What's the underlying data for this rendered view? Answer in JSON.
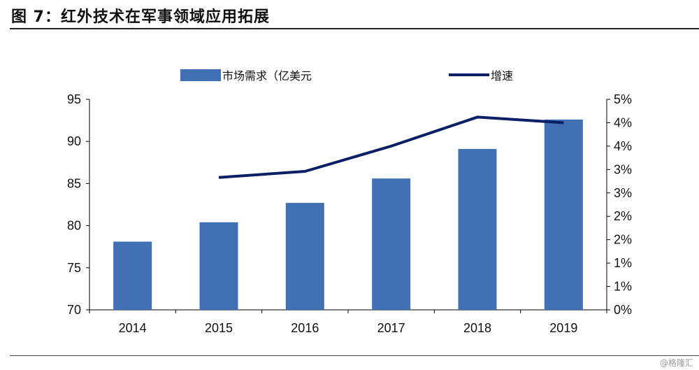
{
  "figure_title": "图 7：红外技术在军事领域应用拓展",
  "watermark": "@格隆汇",
  "colors": {
    "bar": "#4170b5",
    "line": "#0b1f66",
    "axis": "#000000"
  },
  "chart_data": {
    "type": "bar",
    "categories": [
      "2014",
      "2015",
      "2016",
      "2017",
      "2018",
      "2019"
    ],
    "series": [
      {
        "name": "市场需求（亿美元",
        "type": "bar",
        "axis": "left",
        "values": [
          78.1,
          80.4,
          82.7,
          85.6,
          89.1,
          92.6
        ]
      },
      {
        "name": "增速",
        "type": "line",
        "axis": "right",
        "values": [
          null,
          2.83,
          2.96,
          3.5,
          4.12,
          4.0
        ]
      }
    ],
    "y_left": {
      "min": 70,
      "max": 95,
      "ticks": [
        70,
        75,
        80,
        85,
        90,
        95
      ],
      "tick_labels": [
        "70",
        "75",
        "80",
        "85",
        "90",
        "95"
      ]
    },
    "y_right": {
      "min": 0,
      "max": 4.5,
      "ticks": [
        0,
        0.5,
        1,
        1.5,
        2,
        2.5,
        3,
        3.5,
        4,
        4.5
      ],
      "tick_labels": [
        "0%",
        "1%",
        "1%",
        "2%",
        "2%",
        "3%",
        "3%",
        "4%",
        "4%",
        "5%"
      ]
    },
    "legend_position": "top",
    "grid": false
  }
}
